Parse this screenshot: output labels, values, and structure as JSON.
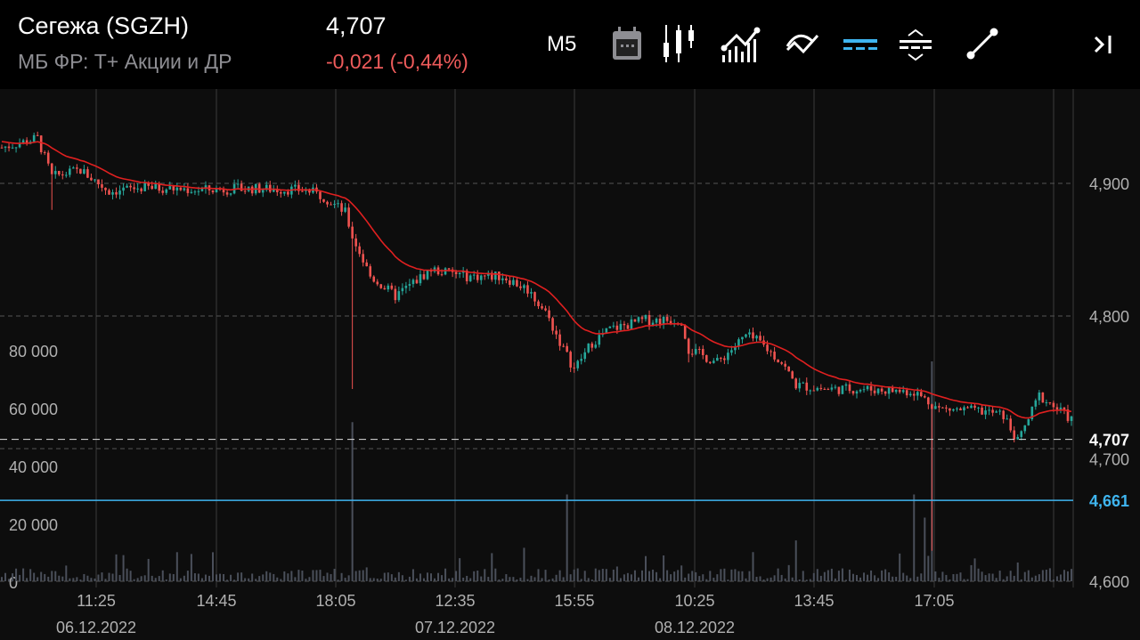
{
  "header": {
    "title": "Сегежа (SGZH)",
    "exchange": "МБ ФР: Т+ Акции и ДР",
    "price": "4,707",
    "change": "-0,021 (-0,44%)"
  },
  "toolbar": {
    "timeframe": "M5",
    "icons": [
      "calendar-icon",
      "candles-icon",
      "indicators-icon",
      "compare-icon",
      "levels-icon",
      "scale-icon",
      "trendline-icon",
      "scroll-to-end-icon"
    ],
    "active_color": "#3fb5f0"
  },
  "chart_data": {
    "type": "candlestick",
    "price_ticks": [
      "4,900",
      "4,800",
      "4,700",
      "4,600"
    ],
    "price_tick_values": [
      4.9,
      4.8,
      4.7,
      4.6
    ],
    "volume_ticks": [
      "80 000",
      "60 000",
      "40 000",
      "20 000",
      "0"
    ],
    "volume_tick_values": [
      80000,
      60000,
      40000,
      20000,
      0
    ],
    "time_ticks": [
      "11:25",
      "14:45",
      "18:05",
      "12:35",
      "15:55",
      "10:25",
      "13:45",
      "17:05"
    ],
    "date_ticks": [
      {
        "label": "06.12.2022",
        "at": "11:25"
      },
      {
        "label": "07.12.2022",
        "at": "12:35"
      },
      {
        "label": "08.12.2022",
        "at": "10:25"
      }
    ],
    "last_price": {
      "label": "4,707",
      "value": 4.707
    },
    "level_line": {
      "label": "4,661",
      "value": 4.661,
      "color": "#3fb5f0"
    },
    "ma_color": "#e02020",
    "up_color": "#26a69a",
    "down_color": "#ef5350",
    "price_path": [
      [
        0,
        4.927
      ],
      [
        10,
        4.934
      ],
      [
        14,
        4.905
      ],
      [
        22,
        4.91
      ],
      [
        30,
        4.894
      ],
      [
        40,
        4.897
      ],
      [
        55,
        4.895
      ],
      [
        70,
        4.896
      ],
      [
        85,
        4.895
      ],
      [
        90,
        4.89
      ],
      [
        96,
        4.878
      ],
      [
        98,
        4.86
      ],
      [
        103,
        4.83
      ],
      [
        110,
        4.815
      ],
      [
        120,
        4.835
      ],
      [
        130,
        4.83
      ],
      [
        140,
        4.83
      ],
      [
        147,
        4.82
      ],
      [
        152,
        4.803
      ],
      [
        157,
        4.775
      ],
      [
        160,
        4.76
      ],
      [
        165,
        4.78
      ],
      [
        170,
        4.79
      ],
      [
        180,
        4.797
      ],
      [
        190,
        4.797
      ],
      [
        192,
        4.775
      ],
      [
        200,
        4.765
      ],
      [
        208,
        4.785
      ],
      [
        212,
        4.78
      ],
      [
        218,
        4.765
      ],
      [
        222,
        4.748
      ],
      [
        230,
        4.745
      ],
      [
        240,
        4.745
      ],
      [
        255,
        4.743
      ],
      [
        262,
        4.73
      ],
      [
        275,
        4.728
      ],
      [
        280,
        4.725
      ],
      [
        284,
        4.705
      ],
      [
        290,
        4.74
      ],
      [
        300,
        4.72
      ]
    ]
  }
}
